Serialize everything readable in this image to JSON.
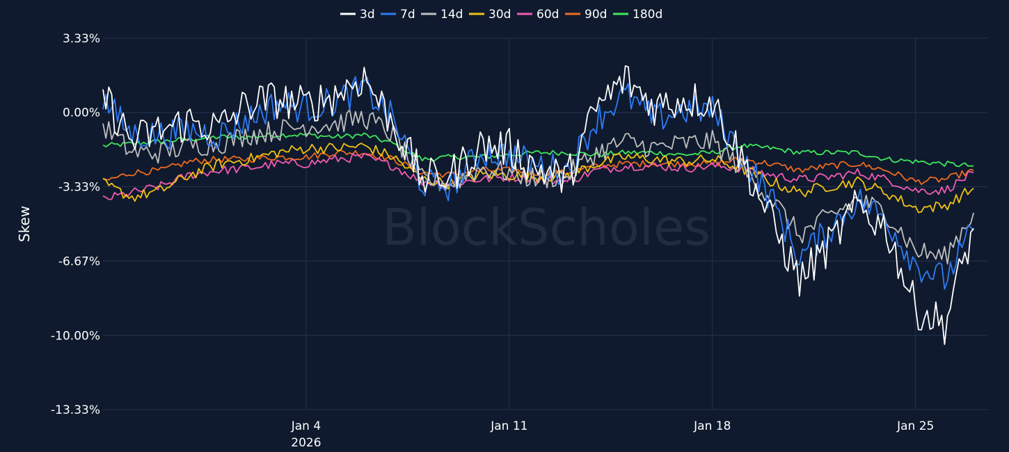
{
  "watermark": "BlockScholes",
  "chart_data": {
    "type": "line",
    "ylabel": "Skew",
    "xlabel": "",
    "title": "",
    "ylim": [
      -13.33,
      3.33
    ],
    "xlim": [
      "2025-12-28",
      "2026-01-27T12:00"
    ],
    "y_ticks": [
      {
        "value": 3.33,
        "label": "3.33%"
      },
      {
        "value": 0.0,
        "label": "0.00%"
      },
      {
        "value": -3.33,
        "label": "-3.33%"
      },
      {
        "value": -6.67,
        "label": "-6.67%"
      },
      {
        "value": -10.0,
        "label": "-10.00%"
      },
      {
        "value": -13.33,
        "label": "-13.33%"
      }
    ],
    "x_ticks": [
      {
        "date": "2026-01-04",
        "label": "Jan 4",
        "sublabel": "2026"
      },
      {
        "date": "2026-01-11",
        "label": "Jan 11",
        "sublabel": ""
      },
      {
        "date": "2026-01-18",
        "label": "Jan 18",
        "sublabel": ""
      },
      {
        "date": "2026-01-25",
        "label": "Jan 25",
        "sublabel": ""
      }
    ],
    "grid": true,
    "legend_position": "top-center",
    "x": [
      "2025-12-28",
      "2025-12-29",
      "2025-12-30",
      "2025-12-31",
      "2026-01-01",
      "2026-01-02",
      "2026-01-03",
      "2026-01-04",
      "2026-01-05",
      "2026-01-06",
      "2026-01-07",
      "2026-01-08",
      "2026-01-09",
      "2026-01-10",
      "2026-01-11",
      "2026-01-12",
      "2026-01-13",
      "2026-01-14",
      "2026-01-15",
      "2026-01-16",
      "2026-01-17",
      "2026-01-18",
      "2026-01-19",
      "2026-01-20",
      "2026-01-21",
      "2026-01-22",
      "2026-01-23",
      "2026-01-24",
      "2026-01-25",
      "2026-01-26",
      "2026-01-27"
    ],
    "series": [
      {
        "name": "3d",
        "color": "#ffffff",
        "values": [
          0.8,
          -1.3,
          -0.8,
          -0.4,
          -0.7,
          0.4,
          0.6,
          0.3,
          0.8,
          1.6,
          -0.5,
          -3.0,
          -2.8,
          -1.5,
          -1.6,
          -2.5,
          -3.0,
          0.2,
          1.5,
          0.3,
          0.6,
          0.5,
          -2.0,
          -4.8,
          -7.5,
          -6.0,
          -4.2,
          -5.2,
          -8.8,
          -9.5,
          -5.2
        ]
      },
      {
        "name": "7d",
        "color": "#2f7cf6",
        "values": [
          0.6,
          -1.0,
          -1.0,
          -0.8,
          -1.0,
          -0.3,
          0.4,
          0.2,
          0.5,
          1.1,
          -0.3,
          -3.2,
          -3.3,
          -1.8,
          -1.9,
          -2.4,
          -2.6,
          -0.3,
          0.8,
          -0.3,
          0.1,
          0.1,
          -1.9,
          -3.8,
          -6.5,
          -5.3,
          -3.9,
          -4.8,
          -6.8,
          -7.5,
          -5.3
        ]
      },
      {
        "name": "14d",
        "color": "#bfbfbf",
        "values": [
          -0.6,
          -1.8,
          -1.8,
          -1.5,
          -1.4,
          -1.0,
          -0.8,
          -0.6,
          -0.5,
          -0.2,
          -1.0,
          -3.0,
          -3.2,
          -2.5,
          -2.7,
          -3.0,
          -2.8,
          -1.8,
          -1.3,
          -1.6,
          -1.4,
          -1.3,
          -2.5,
          -3.8,
          -5.5,
          -4.7,
          -3.9,
          -4.5,
          -6.2,
          -6.5,
          -4.5
        ]
      },
      {
        "name": "30d",
        "color": "#f2c20f",
        "values": [
          -3.2,
          -3.8,
          -3.5,
          -2.8,
          -2.3,
          -2.1,
          -1.8,
          -1.6,
          -1.6,
          -1.5,
          -2.0,
          -3.0,
          -3.2,
          -2.8,
          -2.8,
          -2.9,
          -2.8,
          -2.3,
          -2.0,
          -2.1,
          -2.2,
          -2.1,
          -2.5,
          -3.1,
          -3.6,
          -3.3,
          -3.1,
          -3.6,
          -4.3,
          -4.2,
          -3.4
        ]
      },
      {
        "name": "60d",
        "color": "#f25bb0",
        "values": [
          -3.9,
          -3.6,
          -3.3,
          -2.8,
          -2.6,
          -2.5,
          -2.3,
          -2.3,
          -2.1,
          -2.0,
          -2.4,
          -3.1,
          -3.2,
          -3.0,
          -2.9,
          -3.0,
          -3.1,
          -2.6,
          -2.4,
          -2.4,
          -2.5,
          -2.4,
          -2.5,
          -2.8,
          -3.0,
          -2.9,
          -2.7,
          -3.0,
          -3.5,
          -3.5,
          -2.7
        ]
      },
      {
        "name": "90d",
        "color": "#f06a1e",
        "values": [
          -3.1,
          -2.7,
          -2.6,
          -2.2,
          -2.1,
          -2.1,
          -2.0,
          -2.0,
          -1.8,
          -1.8,
          -2.1,
          -2.7,
          -2.8,
          -2.6,
          -2.6,
          -2.7,
          -2.7,
          -2.4,
          -2.3,
          -2.3,
          -2.3,
          -2.3,
          -2.1,
          -2.3,
          -2.6,
          -2.4,
          -2.3,
          -2.6,
          -3.1,
          -3.0,
          -2.6
        ]
      },
      {
        "name": "180d",
        "color": "#3ee85c",
        "values": [
          -1.5,
          -1.4,
          -1.3,
          -1.2,
          -1.1,
          -1.1,
          -1.0,
          -1.0,
          -1.1,
          -1.0,
          -1.4,
          -2.1,
          -2.0,
          -2.0,
          -1.9,
          -1.8,
          -1.8,
          -1.9,
          -1.8,
          -1.8,
          -1.9,
          -1.8,
          -1.5,
          -1.6,
          -1.8,
          -1.8,
          -1.8,
          -2.1,
          -2.2,
          -2.3,
          -2.4
        ]
      }
    ]
  }
}
